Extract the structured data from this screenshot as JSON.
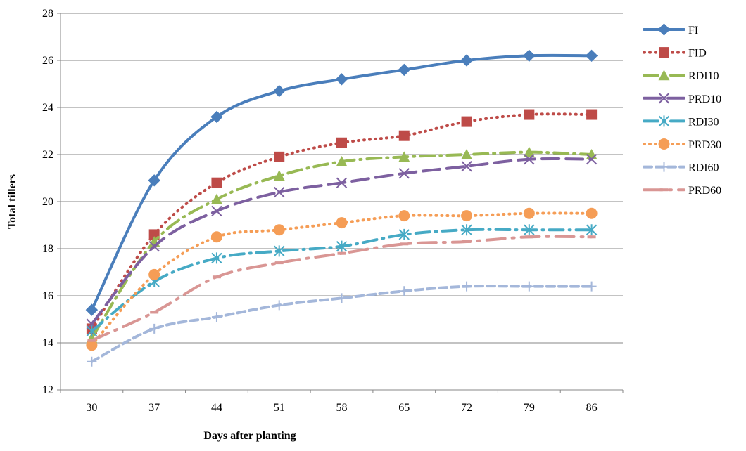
{
  "chart_data": {
    "type": "line",
    "title": "",
    "xlabel": "Days after planting",
    "ylabel": "Total tillers",
    "categories": [
      "30",
      "37",
      "44",
      "51",
      "58",
      "65",
      "72",
      "79",
      "86"
    ],
    "ylim": [
      12,
      28
    ],
    "yticks": [
      12,
      14,
      16,
      18,
      20,
      22,
      24,
      26,
      28
    ],
    "grid": "horizontal",
    "legend": "right",
    "series": [
      {
        "name": "FI",
        "values": [
          15.4,
          20.9,
          23.6,
          24.7,
          25.2,
          25.6,
          26.0,
          26.2,
          26.2
        ],
        "color": "#4a7ebb",
        "marker": "diamond",
        "dash": "solid"
      },
      {
        "name": "FID",
        "values": [
          14.6,
          18.6,
          20.8,
          21.9,
          22.5,
          22.8,
          23.4,
          23.7,
          23.7
        ],
        "color": "#be4b48",
        "marker": "square",
        "dash": "dot"
      },
      {
        "name": "RDI10",
        "values": [
          14.2,
          18.3,
          20.1,
          21.1,
          21.7,
          21.9,
          22.0,
          22.1,
          22.0
        ],
        "color": "#98b954",
        "marker": "triangle",
        "dash": "dashdot"
      },
      {
        "name": "PRD10",
        "values": [
          14.8,
          18.1,
          19.6,
          20.4,
          20.8,
          21.2,
          21.5,
          21.8,
          21.8
        ],
        "color": "#7d60a0",
        "marker": "x",
        "dash": "longdash"
      },
      {
        "name": "RDI30",
        "values": [
          14.5,
          16.6,
          17.6,
          17.9,
          18.1,
          18.6,
          18.8,
          18.8,
          18.8
        ],
        "color": "#46aac5",
        "marker": "star",
        "dash": "dashdot"
      },
      {
        "name": "PRD30",
        "values": [
          13.9,
          16.9,
          18.5,
          18.8,
          19.1,
          19.4,
          19.4,
          19.5,
          19.5
        ],
        "color": "#f59d56",
        "marker": "circle",
        "dash": "dot"
      },
      {
        "name": "RDI60",
        "values": [
          13.2,
          14.6,
          15.1,
          15.6,
          15.9,
          16.2,
          16.4,
          16.4,
          16.4
        ],
        "color": "#a4b7da",
        "marker": "plus",
        "dash": "dash"
      },
      {
        "name": "PRD60",
        "values": [
          14.1,
          15.3,
          16.8,
          17.4,
          17.8,
          18.2,
          18.3,
          18.5,
          18.5
        ],
        "color": "#d99694",
        "marker": "dash",
        "dash": "longdashdot"
      }
    ]
  }
}
